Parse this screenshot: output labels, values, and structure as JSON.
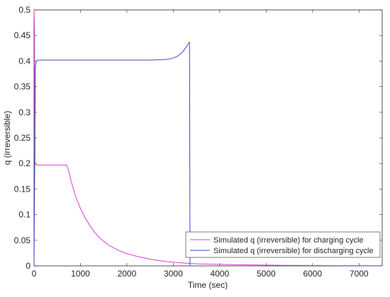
{
  "chart_data": {
    "type": "line",
    "title": "",
    "xlabel": "Time (sec)",
    "ylabel": "q (irreversible)",
    "xlim": [
      0,
      7500
    ],
    "ylim": [
      0,
      0.5
    ],
    "xticks": [
      0,
      1000,
      2000,
      3000,
      4000,
      5000,
      6000,
      7000
    ],
    "yticks": [
      0,
      0.05,
      0.1,
      0.15,
      0.2,
      0.25,
      0.3,
      0.35,
      0.4,
      0.45,
      0.5
    ],
    "xtick_labels": [
      "0",
      "1000",
      "2000",
      "3000",
      "4000",
      "5000",
      "6000",
      "7000"
    ],
    "ytick_labels": [
      "0",
      "0.05",
      "0.1",
      "0.15",
      "0.2",
      "0.25",
      "0.3",
      "0.35",
      "0.4",
      "0.45",
      "0.5"
    ],
    "grid": false,
    "legend_position": "bottom-right",
    "series": [
      {
        "name": "Simulated q (irreversible) for charging cycle",
        "color": "#d63fd6",
        "x": [
          0,
          10,
          20,
          40,
          60,
          100,
          200,
          300,
          400,
          500,
          600,
          700,
          750,
          800,
          900,
          1000,
          1100,
          1200,
          1300,
          1400,
          1500,
          1600,
          1700,
          1800,
          2000,
          2200,
          2500,
          2800,
          3000,
          3500,
          4000,
          4500,
          5000,
          5500,
          6000,
          6500,
          7000,
          7500
        ],
        "y": [
          0.5,
          0.46,
          0.2,
          0.198,
          0.197,
          0.197,
          0.197,
          0.197,
          0.197,
          0.197,
          0.197,
          0.197,
          0.185,
          0.165,
          0.135,
          0.112,
          0.094,
          0.079,
          0.066,
          0.056,
          0.048,
          0.041,
          0.036,
          0.031,
          0.024,
          0.019,
          0.013,
          0.009,
          0.007,
          0.004,
          0.003,
          0.002,
          0.0015,
          0.001,
          0.0008,
          0.0006,
          0.0005,
          0.0004
        ]
      },
      {
        "name": "Simulated q (irreversible) for discharging cycle",
        "color": "#4a46c8",
        "x": [
          0,
          15,
          30,
          50,
          80,
          150,
          300,
          600,
          1000,
          1500,
          2000,
          2500,
          2800,
          2900,
          3000,
          3100,
          3200,
          3250,
          3300,
          3330,
          3350,
          3360
        ],
        "y": [
          0,
          0.2,
          0.39,
          0.4,
          0.402,
          0.402,
          0.402,
          0.402,
          0.402,
          0.402,
          0.402,
          0.402,
          0.403,
          0.404,
          0.406,
          0.41,
          0.418,
          0.424,
          0.43,
          0.435,
          0.437,
          0
        ]
      }
    ]
  }
}
